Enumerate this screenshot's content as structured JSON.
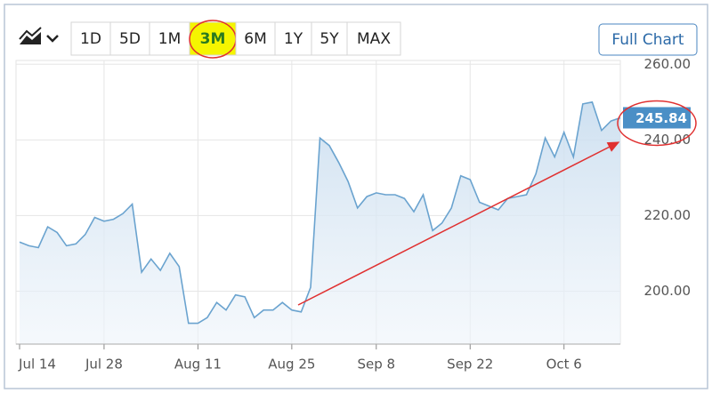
{
  "toolbar": {
    "ranges": [
      "1D",
      "5D",
      "1M",
      "3M",
      "6M",
      "1Y",
      "5Y",
      "MAX"
    ],
    "selected_range": 3,
    "button": "Full Chart"
  },
  "chart_data": {
    "type": "line",
    "color": "#6aa3cf",
    "categories": [
      "Jul 14",
      null,
      null,
      null,
      null,
      null,
      null,
      null,
      null,
      "Jul 28",
      null,
      null,
      null,
      null,
      null,
      null,
      null,
      null,
      null,
      "Aug 11",
      null,
      null,
      null,
      null,
      null,
      null,
      null,
      null,
      null,
      "Aug 25",
      null,
      null,
      null,
      null,
      null,
      null,
      null,
      null,
      "Sep 8",
      null,
      null,
      null,
      null,
      null,
      null,
      null,
      null,
      null,
      "Sep 22",
      null,
      null,
      null,
      null,
      null,
      null,
      null,
      null,
      null,
      "Oct 6",
      null,
      null,
      null,
      null,
      null,
      null
    ],
    "values": [
      213,
      212,
      211.5,
      217,
      215.5,
      212,
      212.5,
      215,
      219.5,
      218.5,
      219,
      220.5,
      223,
      205,
      208.5,
      205.5,
      210,
      206.5,
      191.5,
      191.5,
      193,
      197,
      195,
      199,
      198.5,
      193,
      195,
      195,
      197,
      195,
      194.5,
      201,
      240.5,
      238.5,
      234,
      229,
      222,
      225,
      226,
      225.5,
      225.5,
      224.5,
      221,
      225.5,
      216,
      218,
      222,
      230.5,
      229.5,
      223.5,
      222.5,
      221.5,
      224.5,
      225,
      225.5,
      231,
      240.5,
      235.5,
      242,
      235.5,
      249.5,
      250,
      242.5,
      245,
      245.84
    ],
    "ylim": [
      186,
      261
    ],
    "yticks": [
      {
        "value": 200,
        "label": "200.00"
      },
      {
        "value": 220,
        "label": "220.00"
      },
      {
        "value": 240,
        "label": "240.00"
      },
      {
        "value": 260,
        "label": "260.00"
      }
    ],
    "grid": true
  }
}
